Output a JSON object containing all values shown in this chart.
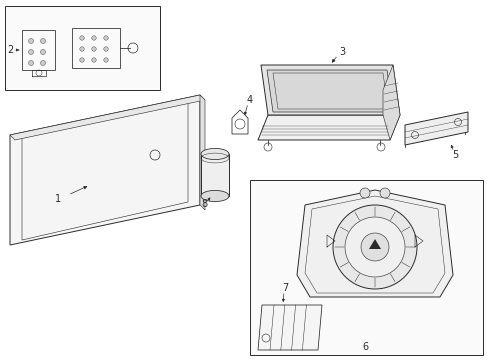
{
  "bg_color": "#ffffff",
  "line_color": "#2a2a2a",
  "lw": 0.7,
  "fig_w": 4.9,
  "fig_h": 3.6,
  "dpi": 100
}
